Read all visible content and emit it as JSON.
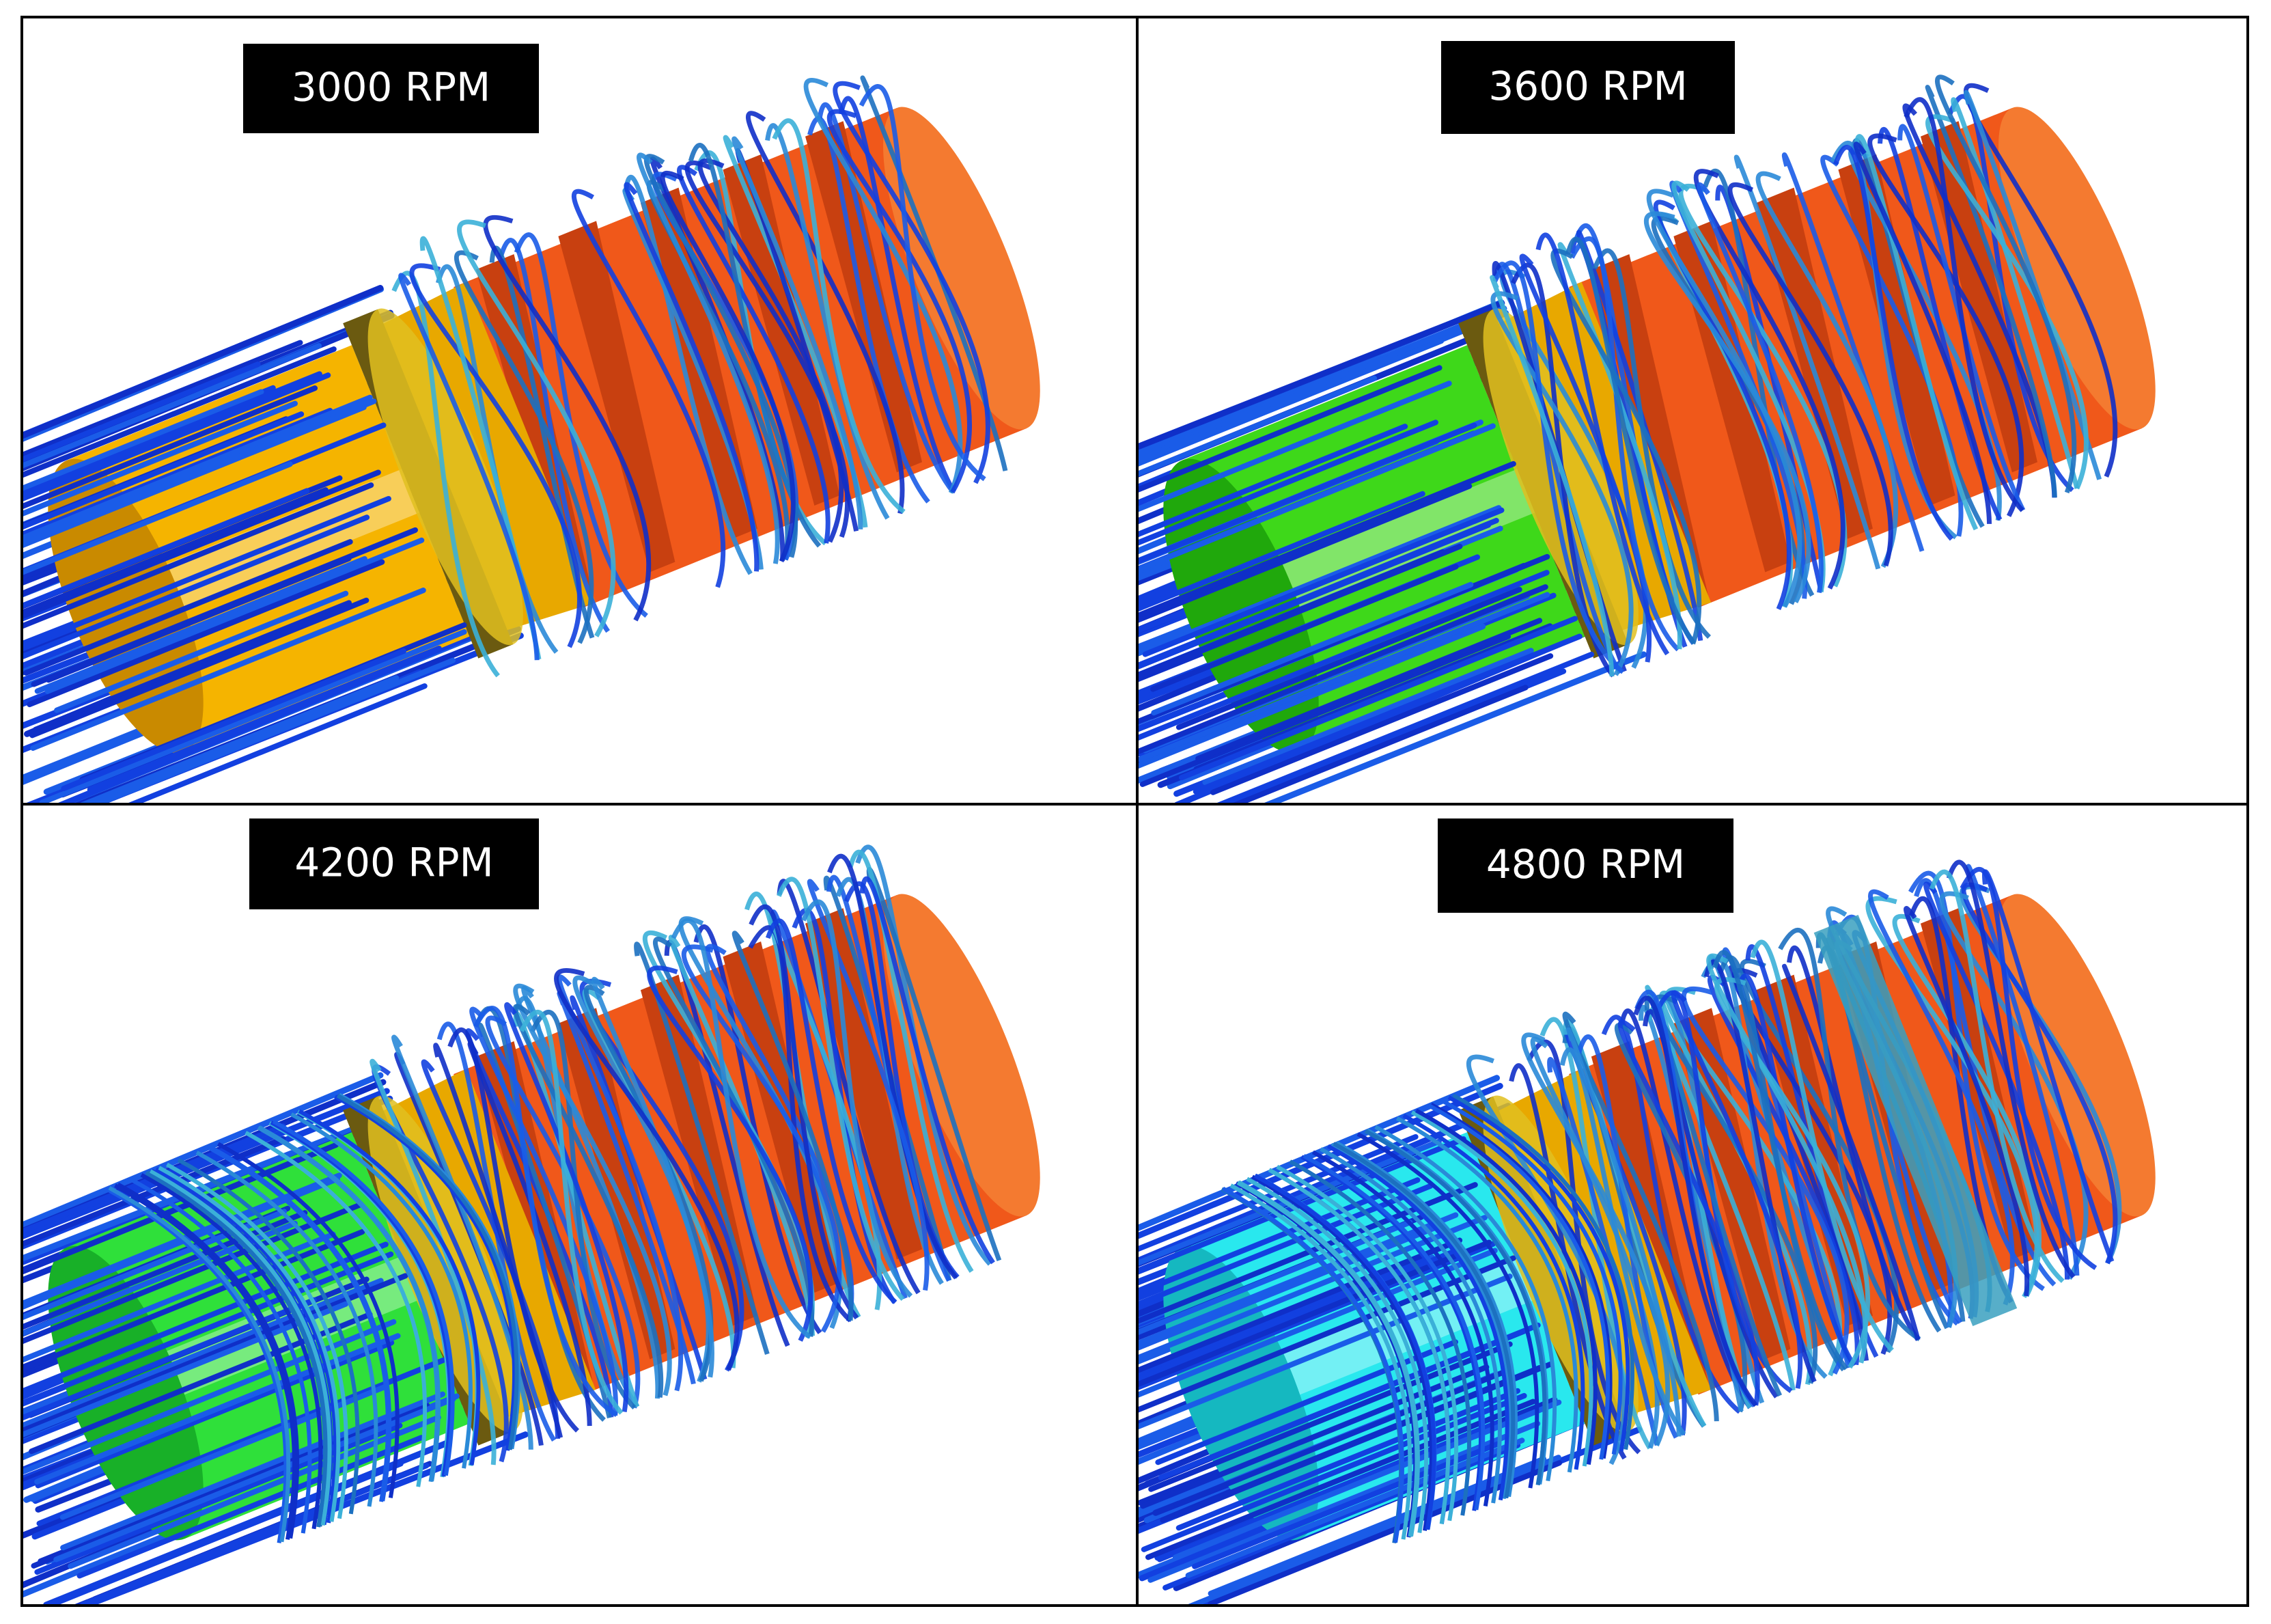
{
  "panels": [
    {
      "label": "3000 RPM"
    },
    {
      "label": "3600 RPM"
    },
    {
      "label": "4200 RPM"
    },
    {
      "label": "4800 RPM"
    }
  ]
}
